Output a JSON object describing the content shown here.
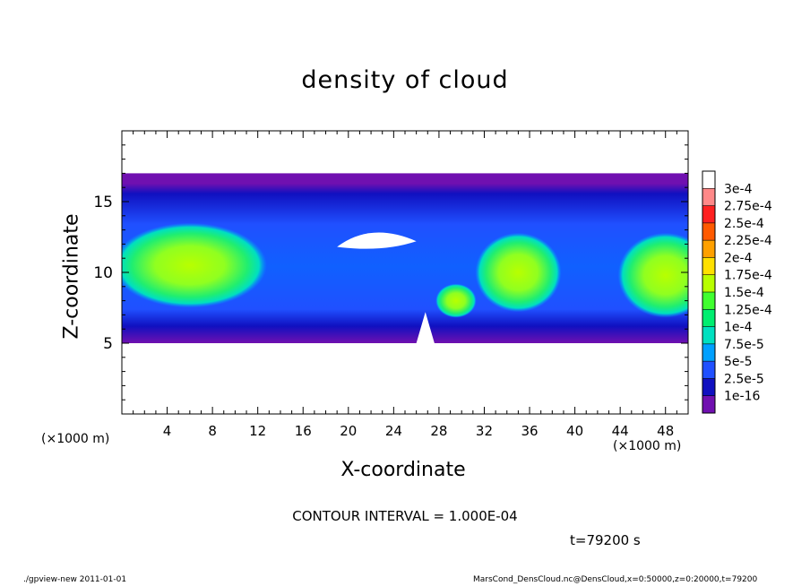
{
  "chart_data": {
    "type": "heatmap",
    "title": "density of cloud",
    "xlabel": "X-coordinate",
    "ylabel": "Z-coordinate",
    "x_unit": "(×1000 m)",
    "xlim": [
      0,
      50
    ],
    "ylim": [
      0,
      20
    ],
    "x_ticks": [
      4,
      8,
      12,
      16,
      20,
      24,
      28,
      32,
      36,
      40,
      44,
      48
    ],
    "y_ticks": [
      5,
      10,
      15
    ],
    "colorbar": {
      "labels": [
        "3e-4",
        "2.75e-4",
        "2.5e-4",
        "2.25e-4",
        "2e-4",
        "1.75e-4",
        "1.5e-4",
        "1.25e-4",
        "1e-4",
        "7.5e-5",
        "5e-5",
        "2.5e-5",
        "1e-16"
      ],
      "colors": [
        "#ffffff",
        "#ff8888",
        "#ff2020",
        "#ff5a00",
        "#ffa000",
        "#ffe000",
        "#b8ff00",
        "#40ff30",
        "#00ee70",
        "#00e0c0",
        "#00a0ff",
        "#2050ff",
        "#1010c0",
        "#7010b0"
      ]
    },
    "cloud_layer_z": [
      5,
      17
    ],
    "contour_interval": "CONTOUR INTERVAL = 1.000E-04",
    "time_label": "t=79200 s"
  },
  "footer": {
    "left": "./gpview-new   2011-01-01",
    "right": "MarsCond_DensCloud.nc@DensCloud,x=0:50000,z=0:20000,t=79200"
  }
}
